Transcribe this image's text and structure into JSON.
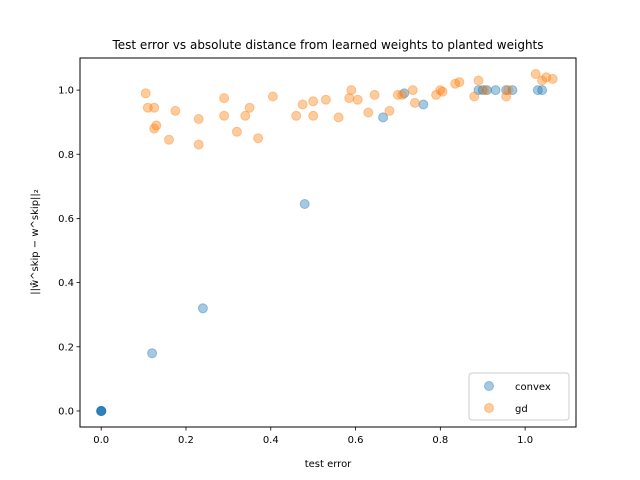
{
  "chart_data": {
    "type": "scatter",
    "title": "Test error vs absolute distance from learned weights to planted weights",
    "xlabel": "test error",
    "ylabel": "||ŵ^skip − w^skip||₂",
    "xlim": [
      -0.05,
      1.12
    ],
    "ylim": [
      -0.05,
      1.1
    ],
    "xticks": [
      0.0,
      0.2,
      0.4,
      0.6,
      0.8,
      1.0
    ],
    "xtick_labels": [
      "0.0",
      "0.2",
      "0.4",
      "0.6",
      "0.8",
      "1.0"
    ],
    "yticks": [
      0.0,
      0.2,
      0.4,
      0.6,
      0.8,
      1.0
    ],
    "ytick_labels": [
      "0.0",
      "0.2",
      "0.4",
      "0.6",
      "0.8",
      "1.0"
    ],
    "grid": false,
    "legend_position": "lower-right",
    "series": [
      {
        "name": "convex",
        "color": "#1f77b4",
        "opacity": 0.4,
        "points": [
          [
            0.0,
            0.0
          ],
          [
            0.0,
            0.0
          ],
          [
            0.0,
            0.0
          ],
          [
            0.0,
            0.0
          ],
          [
            0.0,
            0.0
          ],
          [
            0.12,
            0.18
          ],
          [
            0.24,
            0.32
          ],
          [
            0.48,
            0.645
          ],
          [
            0.665,
            0.915
          ],
          [
            0.715,
            0.99
          ],
          [
            0.76,
            0.955
          ],
          [
            0.89,
            1.0
          ],
          [
            0.9,
            1.0
          ],
          [
            0.91,
            1.0
          ],
          [
            0.93,
            1.0
          ],
          [
            0.955,
            1.0
          ],
          [
            0.97,
            1.0
          ],
          [
            1.03,
            1.0
          ],
          [
            1.04,
            1.0
          ]
        ]
      },
      {
        "name": "gd",
        "color": "#ff7f0e",
        "opacity": 0.4,
        "points": [
          [
            0.105,
            0.99
          ],
          [
            0.11,
            0.945
          ],
          [
            0.125,
            0.945
          ],
          [
            0.125,
            0.88
          ],
          [
            0.13,
            0.89
          ],
          [
            0.16,
            0.845
          ],
          [
            0.175,
            0.935
          ],
          [
            0.23,
            0.91
          ],
          [
            0.23,
            0.83
          ],
          [
            0.29,
            0.975
          ],
          [
            0.29,
            0.92
          ],
          [
            0.32,
            0.87
          ],
          [
            0.34,
            0.92
          ],
          [
            0.35,
            0.945
          ],
          [
            0.37,
            0.85
          ],
          [
            0.405,
            0.98
          ],
          [
            0.46,
            0.92
          ],
          [
            0.475,
            0.955
          ],
          [
            0.5,
            0.965
          ],
          [
            0.5,
            0.92
          ],
          [
            0.53,
            0.97
          ],
          [
            0.56,
            0.915
          ],
          [
            0.585,
            0.975
          ],
          [
            0.59,
            1.0
          ],
          [
            0.605,
            0.97
          ],
          [
            0.63,
            0.93
          ],
          [
            0.645,
            0.985
          ],
          [
            0.68,
            0.935
          ],
          [
            0.7,
            0.985
          ],
          [
            0.71,
            0.985
          ],
          [
            0.735,
            1.0
          ],
          [
            0.74,
            0.96
          ],
          [
            0.79,
            0.985
          ],
          [
            0.8,
            1.0
          ],
          [
            0.805,
            0.995
          ],
          [
            0.835,
            1.02
          ],
          [
            0.845,
            1.025
          ],
          [
            0.88,
            0.98
          ],
          [
            0.89,
            1.03
          ],
          [
            0.905,
            1.0
          ],
          [
            0.955,
            0.98
          ],
          [
            0.96,
            1.0
          ],
          [
            1.025,
            1.05
          ],
          [
            1.04,
            1.03
          ],
          [
            1.05,
            1.04
          ],
          [
            1.065,
            1.035
          ]
        ]
      }
    ]
  }
}
